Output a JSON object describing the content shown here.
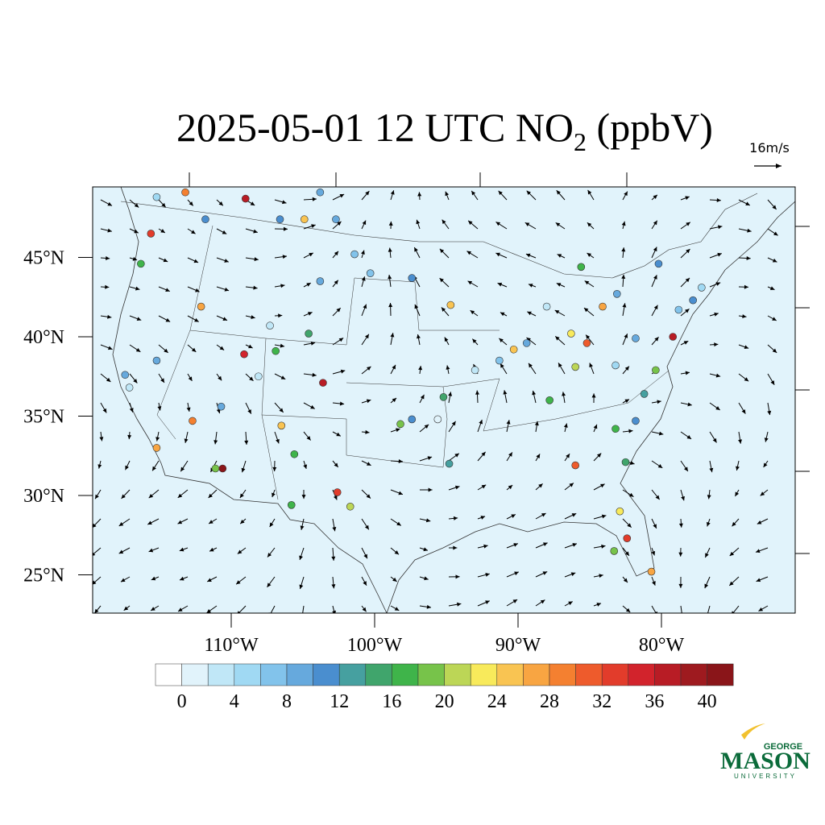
{
  "title": {
    "main": "2025-05-01 12 UTC NO",
    "subscript": "2",
    "tail": " (ppbV)"
  },
  "vector_label": "16m/s",
  "map": {
    "lat_labels": [
      {
        "value": 45,
        "label": "45°N"
      },
      {
        "value": 40,
        "label": "40°N"
      },
      {
        "value": 35,
        "label": "35°N"
      },
      {
        "value": 30,
        "label": "30°N"
      },
      {
        "value": 25,
        "label": "25°N"
      }
    ],
    "lon_labels": [
      {
        "value": -110,
        "label": "110°W"
      },
      {
        "value": -100,
        "label": "100°W"
      },
      {
        "value": -90,
        "label": "90°W"
      },
      {
        "value": -80,
        "label": "80°W"
      }
    ],
    "stations": [
      {
        "lon": -113.2,
        "lat": 49.1,
        "value": 28
      },
      {
        "lon": -109.0,
        "lat": 48.7,
        "value": 36
      },
      {
        "lon": -104.9,
        "lat": 47.4,
        "value": 24
      },
      {
        "lon": -115.6,
        "lat": 46.5,
        "value": 32
      },
      {
        "lon": -116.3,
        "lat": 44.6,
        "value": 16
      },
      {
        "lon": -112.1,
        "lat": 41.9,
        "value": 26
      },
      {
        "lon": -109.1,
        "lat": 38.9,
        "value": 34
      },
      {
        "lon": -103.6,
        "lat": 37.1,
        "value": 36
      },
      {
        "lon": -111.1,
        "lat": 31.7,
        "value": 18
      },
      {
        "lon": -110.6,
        "lat": 31.7,
        "value": 40
      },
      {
        "lon": -115.2,
        "lat": 33.0,
        "value": 26
      },
      {
        "lon": -112.7,
        "lat": 34.7,
        "value": 28
      },
      {
        "lon": -102.6,
        "lat": 30.2,
        "value": 32
      },
      {
        "lon": -101.7,
        "lat": 29.3,
        "value": 20
      },
      {
        "lon": -105.8,
        "lat": 29.4,
        "value": 16
      },
      {
        "lon": -105.6,
        "lat": 32.6,
        "value": 16
      },
      {
        "lon": -106.5,
        "lat": 34.4,
        "value": 24
      },
      {
        "lon": -98.2,
        "lat": 34.5,
        "value": 18
      },
      {
        "lon": -97.4,
        "lat": 34.8,
        "value": 10
      },
      {
        "lon": -95.2,
        "lat": 36.2,
        "value": 14
      },
      {
        "lon": -94.7,
        "lat": 42.0,
        "value": 24
      },
      {
        "lon": -90.3,
        "lat": 39.2,
        "value": 24
      },
      {
        "lon": -85.2,
        "lat": 39.6,
        "value": 30
      },
      {
        "lon": -86.3,
        "lat": 40.2,
        "value": 22
      },
      {
        "lon": -84.1,
        "lat": 41.9,
        "value": 26
      },
      {
        "lon": -79.2,
        "lat": 40.0,
        "value": 36
      },
      {
        "lon": -86.0,
        "lat": 31.9,
        "value": 30
      },
      {
        "lon": -82.4,
        "lat": 27.3,
        "value": 32
      },
      {
        "lon": -80.7,
        "lat": 25.2,
        "value": 26
      },
      {
        "lon": -82.9,
        "lat": 29.0,
        "value": 22
      },
      {
        "lon": -83.3,
        "lat": 26.5,
        "value": 18
      },
      {
        "lon": -83.2,
        "lat": 34.2,
        "value": 16
      },
      {
        "lon": -85.6,
        "lat": 44.4,
        "value": 16
      },
      {
        "lon": -80.4,
        "lat": 37.9,
        "value": 18
      },
      {
        "lon": -86.0,
        "lat": 38.1,
        "value": 20
      },
      {
        "lon": -87.8,
        "lat": 36.0,
        "value": 16
      },
      {
        "lon": -104.6,
        "lat": 40.2,
        "value": 14
      },
      {
        "lon": -106.9,
        "lat": 39.1,
        "value": 16
      },
      {
        "lon": -115.2,
        "lat": 48.8,
        "value": 4
      },
      {
        "lon": -111.8,
        "lat": 47.4,
        "value": 10
      },
      {
        "lon": -102.7,
        "lat": 47.4,
        "value": 8
      },
      {
        "lon": -106.6,
        "lat": 47.4,
        "value": 10
      },
      {
        "lon": -103.8,
        "lat": 49.1,
        "value": 8
      },
      {
        "lon": -101.4,
        "lat": 45.2,
        "value": 6
      },
      {
        "lon": -100.3,
        "lat": 44.0,
        "value": 6
      },
      {
        "lon": -103.8,
        "lat": 43.5,
        "value": 8
      },
      {
        "lon": -97.4,
        "lat": 43.7,
        "value": 10
      },
      {
        "lon": -88.0,
        "lat": 41.9,
        "value": 2
      },
      {
        "lon": -83.1,
        "lat": 42.7,
        "value": 8
      },
      {
        "lon": -81.8,
        "lat": 39.9,
        "value": 8
      },
      {
        "lon": -80.2,
        "lat": 44.6,
        "value": 10
      },
      {
        "lon": -77.8,
        "lat": 42.3,
        "value": 10
      },
      {
        "lon": -78.8,
        "lat": 41.7,
        "value": 6
      },
      {
        "lon": -77.2,
        "lat": 43.1,
        "value": 4
      },
      {
        "lon": -117.1,
        "lat": 36.8,
        "value": 2
      },
      {
        "lon": -117.4,
        "lat": 37.6,
        "value": 8
      },
      {
        "lon": -115.2,
        "lat": 38.5,
        "value": 8
      },
      {
        "lon": -110.7,
        "lat": 35.6,
        "value": 8
      },
      {
        "lon": -107.3,
        "lat": 40.7,
        "value": 2
      },
      {
        "lon": -108.1,
        "lat": 37.5,
        "value": 2
      },
      {
        "lon": -93.0,
        "lat": 37.9,
        "value": 2
      },
      {
        "lon": -95.6,
        "lat": 34.8,
        "value": 0
      },
      {
        "lon": -83.2,
        "lat": 38.2,
        "value": 4
      },
      {
        "lon": -81.8,
        "lat": 34.7,
        "value": 10
      },
      {
        "lon": -81.2,
        "lat": 36.4,
        "value": 12
      },
      {
        "lon": -82.5,
        "lat": 32.1,
        "value": 14
      },
      {
        "lon": -94.8,
        "lat": 32.0,
        "value": 12
      },
      {
        "lon": -91.3,
        "lat": 38.5,
        "value": 6
      },
      {
        "lon": -89.4,
        "lat": 39.6,
        "value": 8
      }
    ]
  },
  "colorbar": {
    "colors": [
      "#ffffff",
      "#e1f3fb",
      "#c0e7f7",
      "#a0d9f3",
      "#82c3eb",
      "#66a9dd",
      "#4a8ecf",
      "#46a0a0",
      "#40a56c",
      "#3fb44a",
      "#77c34a",
      "#bcd656",
      "#f8ea5b",
      "#f9c452",
      "#f8a542",
      "#f48030",
      "#ee5b2c",
      "#e23c2b",
      "#d2232c",
      "#b81c25",
      "#9e1a1f",
      "#8a1519"
    ],
    "step": 2,
    "ticks": [
      0,
      4,
      8,
      12,
      16,
      20,
      24,
      28,
      32,
      36,
      40
    ]
  },
  "logo": {
    "top": "GEORGE",
    "main": "MASON",
    "bottom": "UNIVERSITY"
  }
}
